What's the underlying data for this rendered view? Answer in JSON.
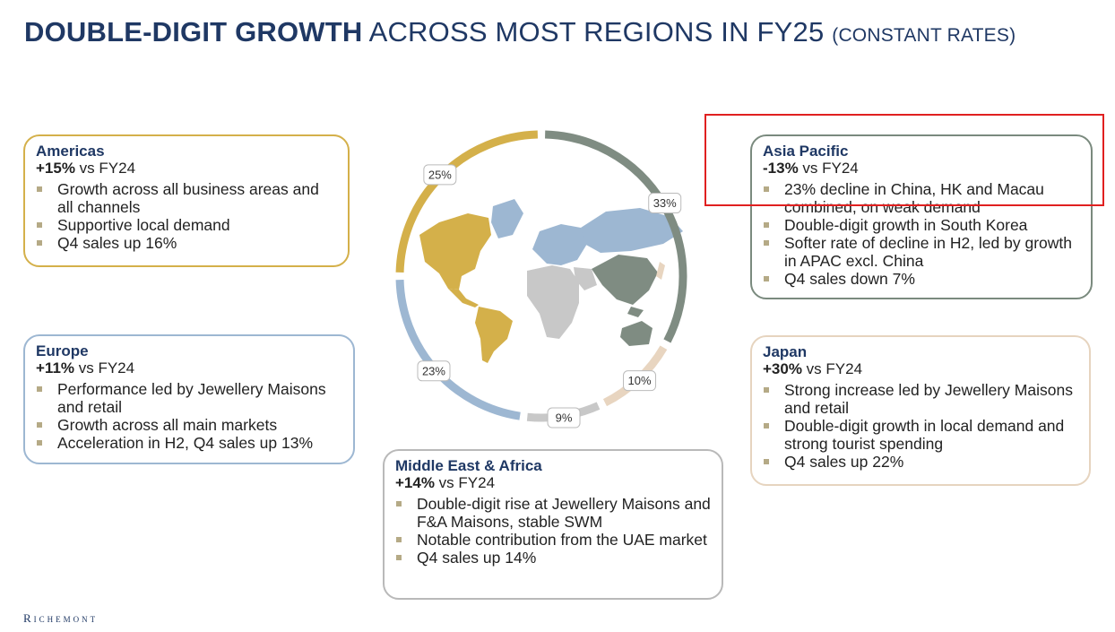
{
  "slide": {
    "title_bold": "DOUBLE-DIGIT GROWTH",
    "title_rest": "ACROSS MOST REGIONS IN FY25",
    "title_note": "(CONSTANT RATES)",
    "logo": "Richemont"
  },
  "chart_data": {
    "type": "pie",
    "categories": [
      "Asia Pacific",
      "Japan",
      "Middle East & Africa",
      "Europe",
      "Americas"
    ],
    "values": [
      33,
      10,
      9,
      23,
      25
    ],
    "labels": [
      "33%",
      "10%",
      "9%",
      "23%",
      "25%"
    ],
    "colors": [
      "#7f8c82",
      "#e8d5c0",
      "#c8c8c8",
      "#9db7d2",
      "#d4b04a"
    ]
  },
  "regions": {
    "americas": {
      "name": "Americas",
      "growth_value": "+15%",
      "growth_suffix": " vs FY24",
      "bullets": [
        "Growth across all business areas and all channels",
        "Supportive local demand",
        "Q4 sales up 16%"
      ]
    },
    "europe": {
      "name": "Europe",
      "growth_value": "+11%",
      "growth_suffix": " vs FY24",
      "bullets": [
        "Performance led by Jewellery Maisons and retail",
        "Growth across all main markets",
        "Acceleration in H2, Q4 sales up 13%"
      ]
    },
    "mea": {
      "name": "Middle East & Africa",
      "growth_value": "+14%",
      "growth_suffix": " vs FY24",
      "bullets": [
        "Double-digit rise at Jewellery Maisons and F&A Maisons, stable SWM",
        "Notable contribution from the UAE market",
        "Q4 sales up 14%"
      ]
    },
    "asia": {
      "name": "Asia Pacific",
      "growth_value": "-13%",
      "growth_suffix": " vs FY24",
      "bullets": [
        "23% decline in China, HK and Macau combined, on weak demand",
        "Double-digit growth in South Korea",
        "Softer rate of decline in H2, led by growth in APAC excl. China",
        "Q4 sales down 7%"
      ]
    },
    "japan": {
      "name": "Japan",
      "growth_value": "+30%",
      "growth_suffix": " vs FY24",
      "bullets": [
        "Strong increase led by Jewellery Maisons and retail",
        "Double-digit growth in local demand and strong tourist spending",
        "Q4 sales up 22%"
      ]
    }
  }
}
